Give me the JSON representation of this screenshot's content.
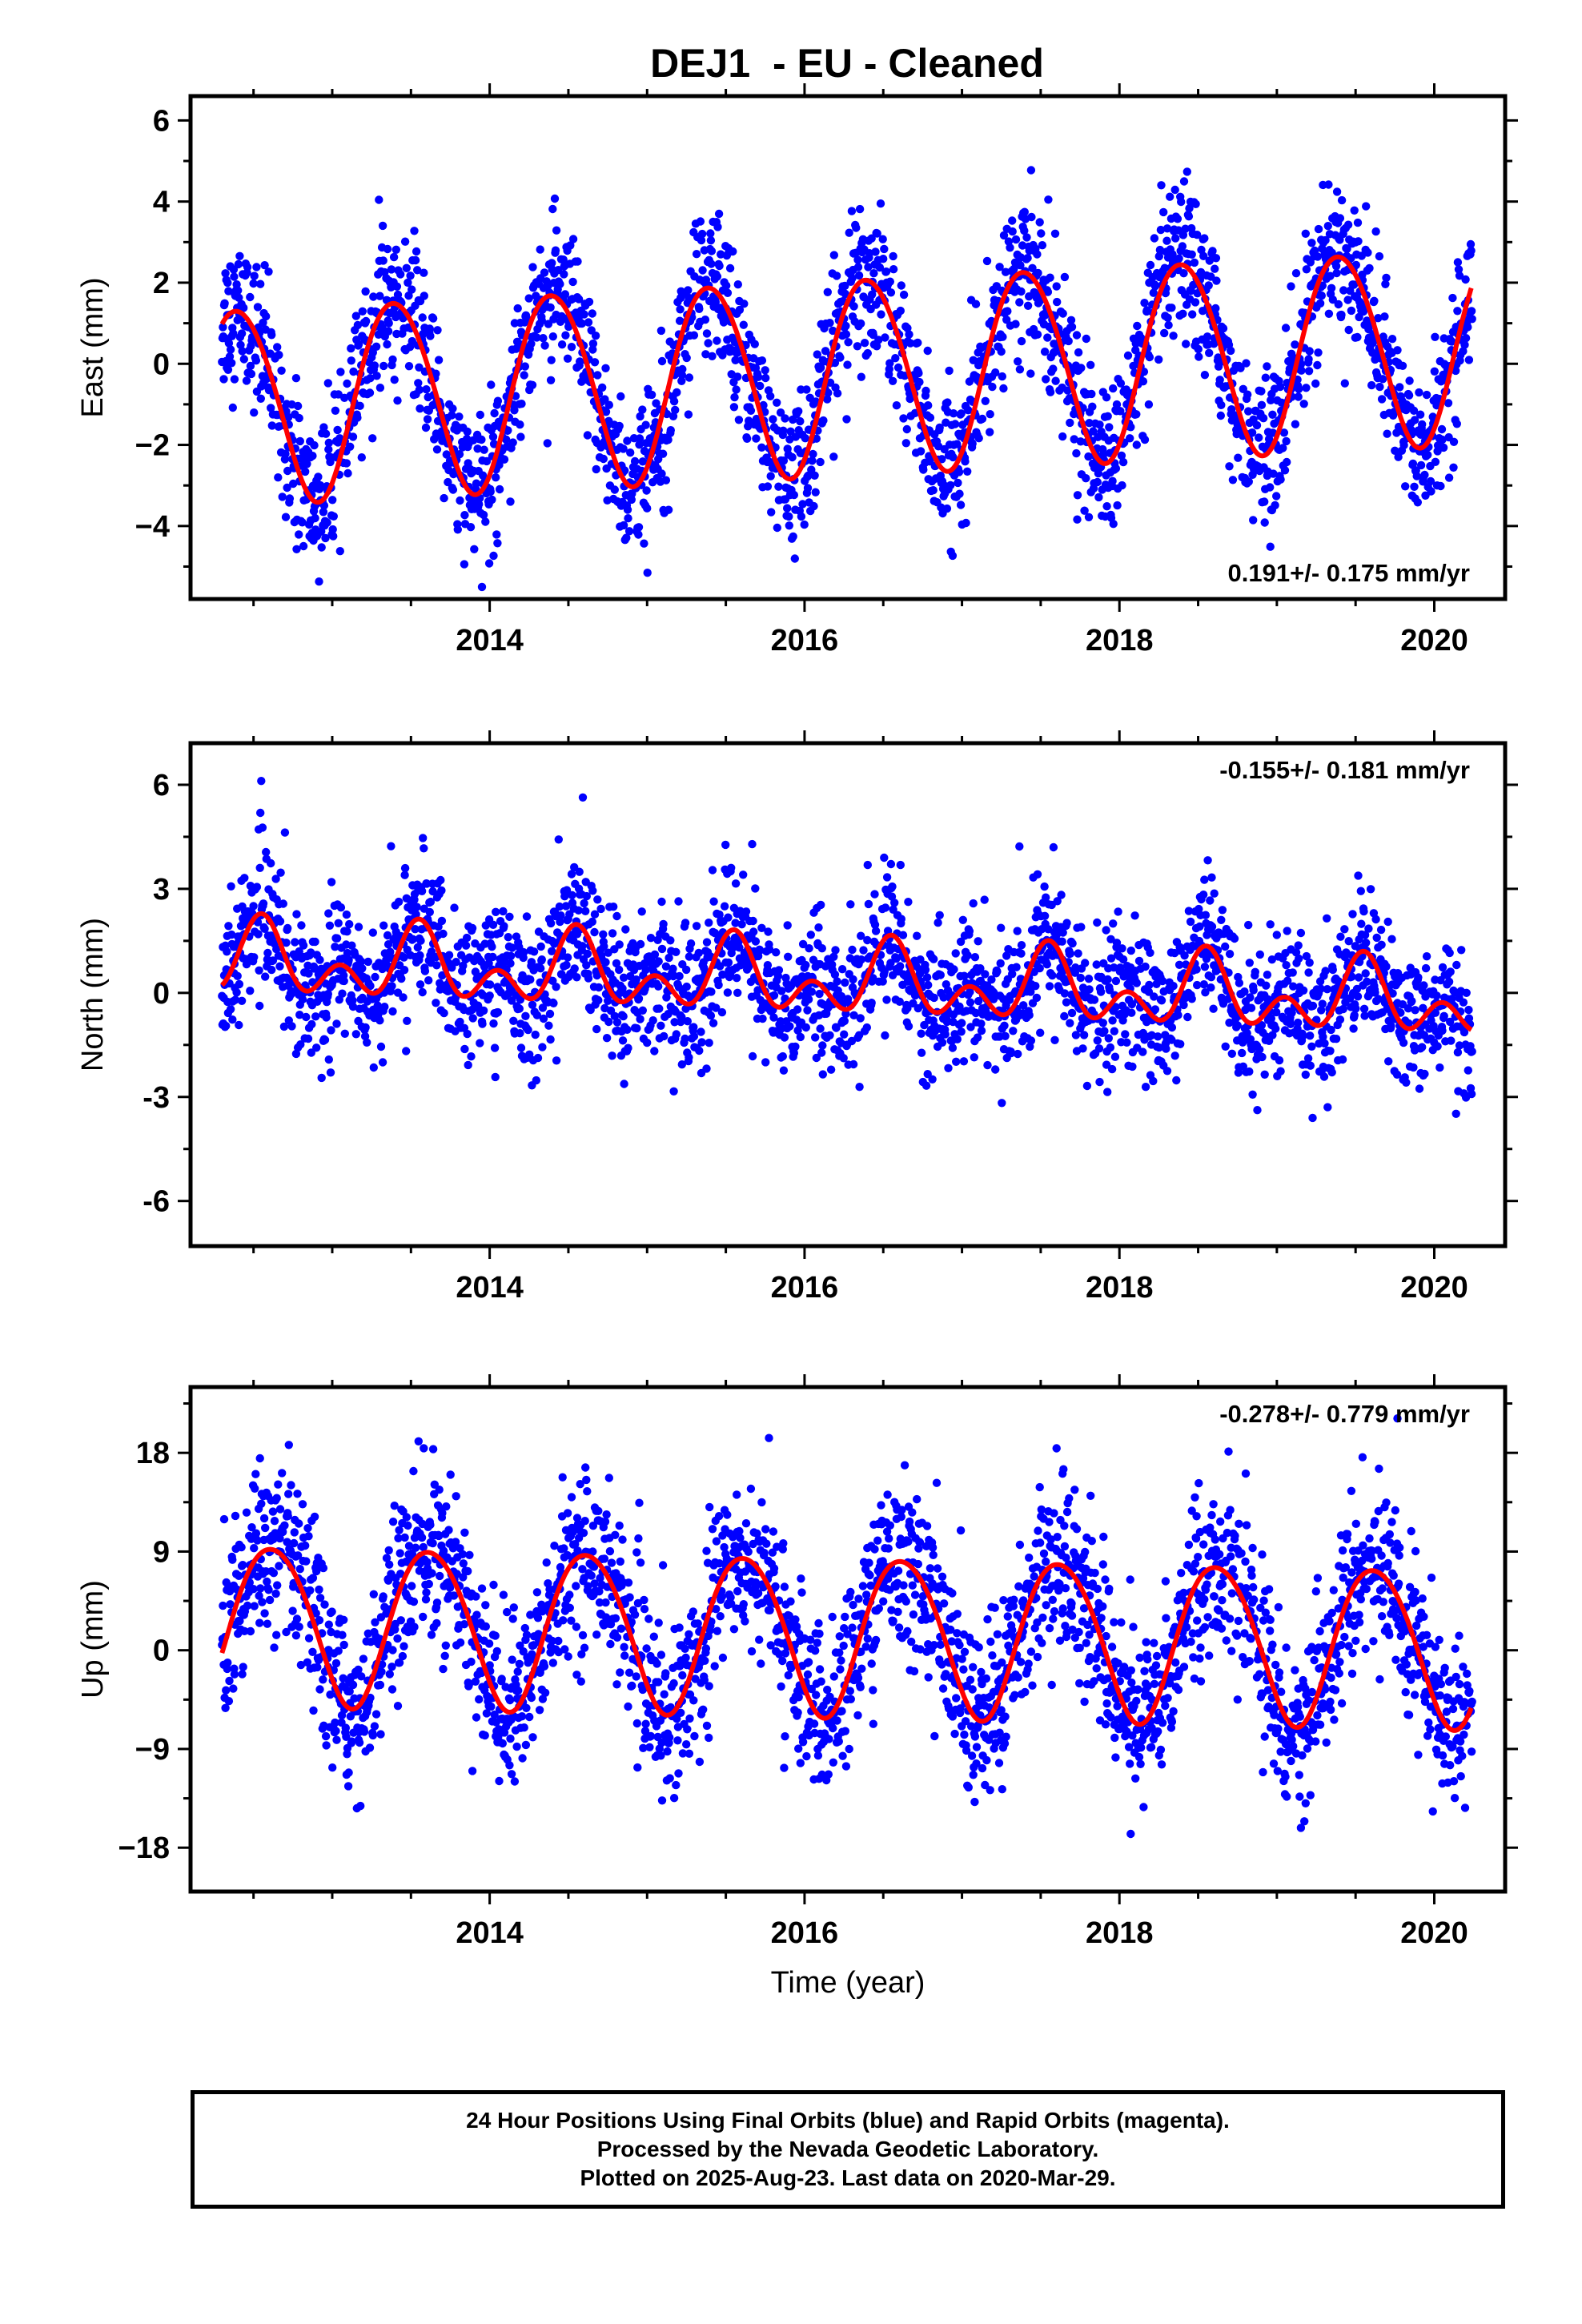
{
  "title": "DEJ1  - EU - Cleaned",
  "colors": {
    "points": "#0000ff",
    "fit": "#ff0000",
    "axis": "#000000"
  },
  "chart_data": [
    {
      "type": "scatter",
      "name": "east",
      "ylabel": "East (mm)",
      "xlabel": "",
      "xlim": [
        2012.1,
        2020.45
      ],
      "ylim": [
        -5.8,
        6.6
      ],
      "xticks": [
        2014,
        2016,
        2018,
        2020
      ],
      "yticks": [
        -4,
        -2,
        0,
        2,
        4,
        6
      ],
      "ytick_labels": [
        "−4",
        "−2",
        "0",
        "2",
        "4",
        "6"
      ],
      "rate_label": "0.191+/- 0.175 mm/yr",
      "rate_position": "bottom-right",
      "x_start": 2012.3,
      "x_end": 2020.24,
      "fit": {
        "offset": -0.3,
        "trend": 0.191,
        "annual_amplitude": 2.4,
        "annual_peak": 0.4,
        "semiannual_amplitude": 0.15,
        "semiannual_peak": 0.2,
        "scatter_sd": 0.9
      }
    },
    {
      "type": "scatter",
      "name": "north",
      "ylabel": "North (mm)",
      "xlabel": "",
      "xlim": [
        2012.1,
        2020.45
      ],
      "ylim": [
        -7.3,
        7.2
      ],
      "xticks": [
        2014,
        2016,
        2018,
        2020
      ],
      "yticks": [
        -6,
        -3,
        0,
        3,
        6
      ],
      "ytick_labels": [
        "-6",
        "-3",
        "0",
        "3",
        "6"
      ],
      "rate_label": "-0.155+/- 0.181 mm/yr",
      "rate_position": "top-right",
      "x_start": 2012.3,
      "x_end": 2020.24,
      "fit": {
        "offset": 0.35,
        "trend": -0.155,
        "annual_amplitude": 0.7,
        "annual_peak": 0.55,
        "semiannual_amplitude": 0.7,
        "semiannual_peak": 0.05,
        "scatter_sd": 1.0
      }
    },
    {
      "type": "scatter",
      "name": "up",
      "ylabel": "Up (mm)",
      "xlabel": "Time (year)",
      "xlim": [
        2012.1,
        2020.45
      ],
      "ylim": [
        -22,
        24
      ],
      "xticks": [
        2014,
        2016,
        2018,
        2020
      ],
      "yticks": [
        -18,
        -9,
        0,
        9,
        18
      ],
      "ytick_labels": [
        "−18",
        "−9",
        "0",
        "9",
        "18"
      ],
      "rate_label": "-0.278+/- 0.779 mm/yr",
      "rate_position": "top-right",
      "x_start": 2012.3,
      "x_end": 2020.24,
      "fit": {
        "offset": 1.6,
        "trend": -0.278,
        "annual_amplitude": 7.2,
        "annual_peak": 0.62,
        "semiannual_amplitude": 0.6,
        "semiannual_peak": 0.4,
        "scatter_sd": 3.8
      }
    }
  ],
  "footer": {
    "line1": "24 Hour Positions Using Final Orbits (blue) and Rapid Orbits (magenta).",
    "line2": "Processed by the Nevada Geodetic Laboratory.",
    "line3": "Plotted on 2025-Aug-23. Last data on 2020-Mar-29."
  }
}
